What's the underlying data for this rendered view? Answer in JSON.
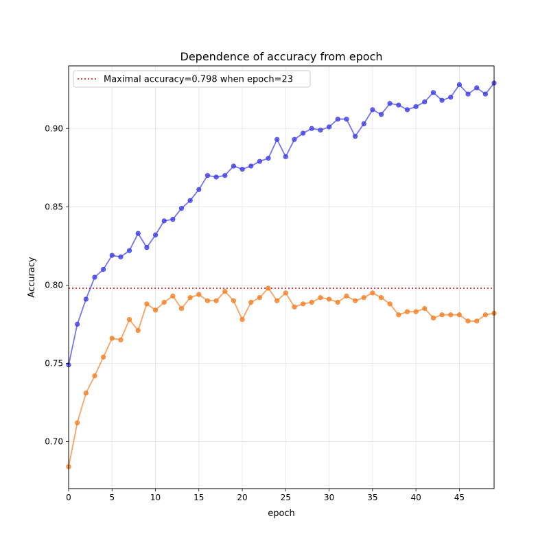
{
  "chart_data": {
    "type": "line",
    "title": "Dependence of accuracy from epoch",
    "xlabel": "epoch",
    "ylabel": "Accuracy",
    "xlim": [
      0,
      49
    ],
    "ylim": [
      0.67,
      0.94
    ],
    "xticks": [
      0,
      5,
      10,
      15,
      20,
      25,
      30,
      35,
      40,
      45
    ],
    "yticks": [
      0.7,
      0.75,
      0.8,
      0.85,
      0.9
    ],
    "grid": true,
    "legend_position": "top-left",
    "x": [
      0,
      1,
      2,
      3,
      4,
      5,
      6,
      7,
      8,
      9,
      10,
      11,
      12,
      13,
      14,
      15,
      16,
      17,
      18,
      19,
      20,
      21,
      22,
      23,
      24,
      25,
      26,
      27,
      28,
      29,
      30,
      31,
      32,
      33,
      34,
      35,
      36,
      37,
      38,
      39,
      40,
      41,
      42,
      43,
      44,
      45,
      46,
      47,
      48,
      49
    ],
    "series": [
      {
        "color": "#3a3ae8",
        "marker": "circle",
        "values": [
          0.749,
          0.775,
          0.791,
          0.805,
          0.81,
          0.819,
          0.818,
          0.822,
          0.833,
          0.824,
          0.832,
          0.841,
          0.842,
          0.849,
          0.854,
          0.861,
          0.87,
          0.869,
          0.87,
          0.876,
          0.874,
          0.876,
          0.879,
          0.881,
          0.893,
          0.882,
          0.893,
          0.897,
          0.9,
          0.899,
          0.901,
          0.906,
          0.906,
          0.895,
          0.903,
          0.912,
          0.909,
          0.916,
          0.915,
          0.912,
          0.914,
          0.917,
          0.923,
          0.918,
          0.92,
          0.928,
          0.922,
          0.926,
          0.922,
          0.929
        ]
      },
      {
        "color": "#f57c1f",
        "marker": "circle",
        "values": [
          0.684,
          0.712,
          0.731,
          0.742,
          0.754,
          0.766,
          0.765,
          0.778,
          0.771,
          0.788,
          0.784,
          0.789,
          0.793,
          0.785,
          0.792,
          0.794,
          0.79,
          0.79,
          0.796,
          0.79,
          0.778,
          0.789,
          0.792,
          0.798,
          0.79,
          0.795,
          0.786,
          0.788,
          0.789,
          0.792,
          0.791,
          0.789,
          0.793,
          0.79,
          0.792,
          0.795,
          0.792,
          0.788,
          0.781,
          0.783,
          0.783,
          0.785,
          0.779,
          0.781,
          0.781,
          0.781,
          0.777,
          0.777,
          0.781,
          0.782
        ]
      }
    ],
    "reference_line": {
      "y": 0.798,
      "color": "#d62728",
      "style": "dotted",
      "label": "Maximal accuracy=0.798 when epoch=23"
    }
  }
}
